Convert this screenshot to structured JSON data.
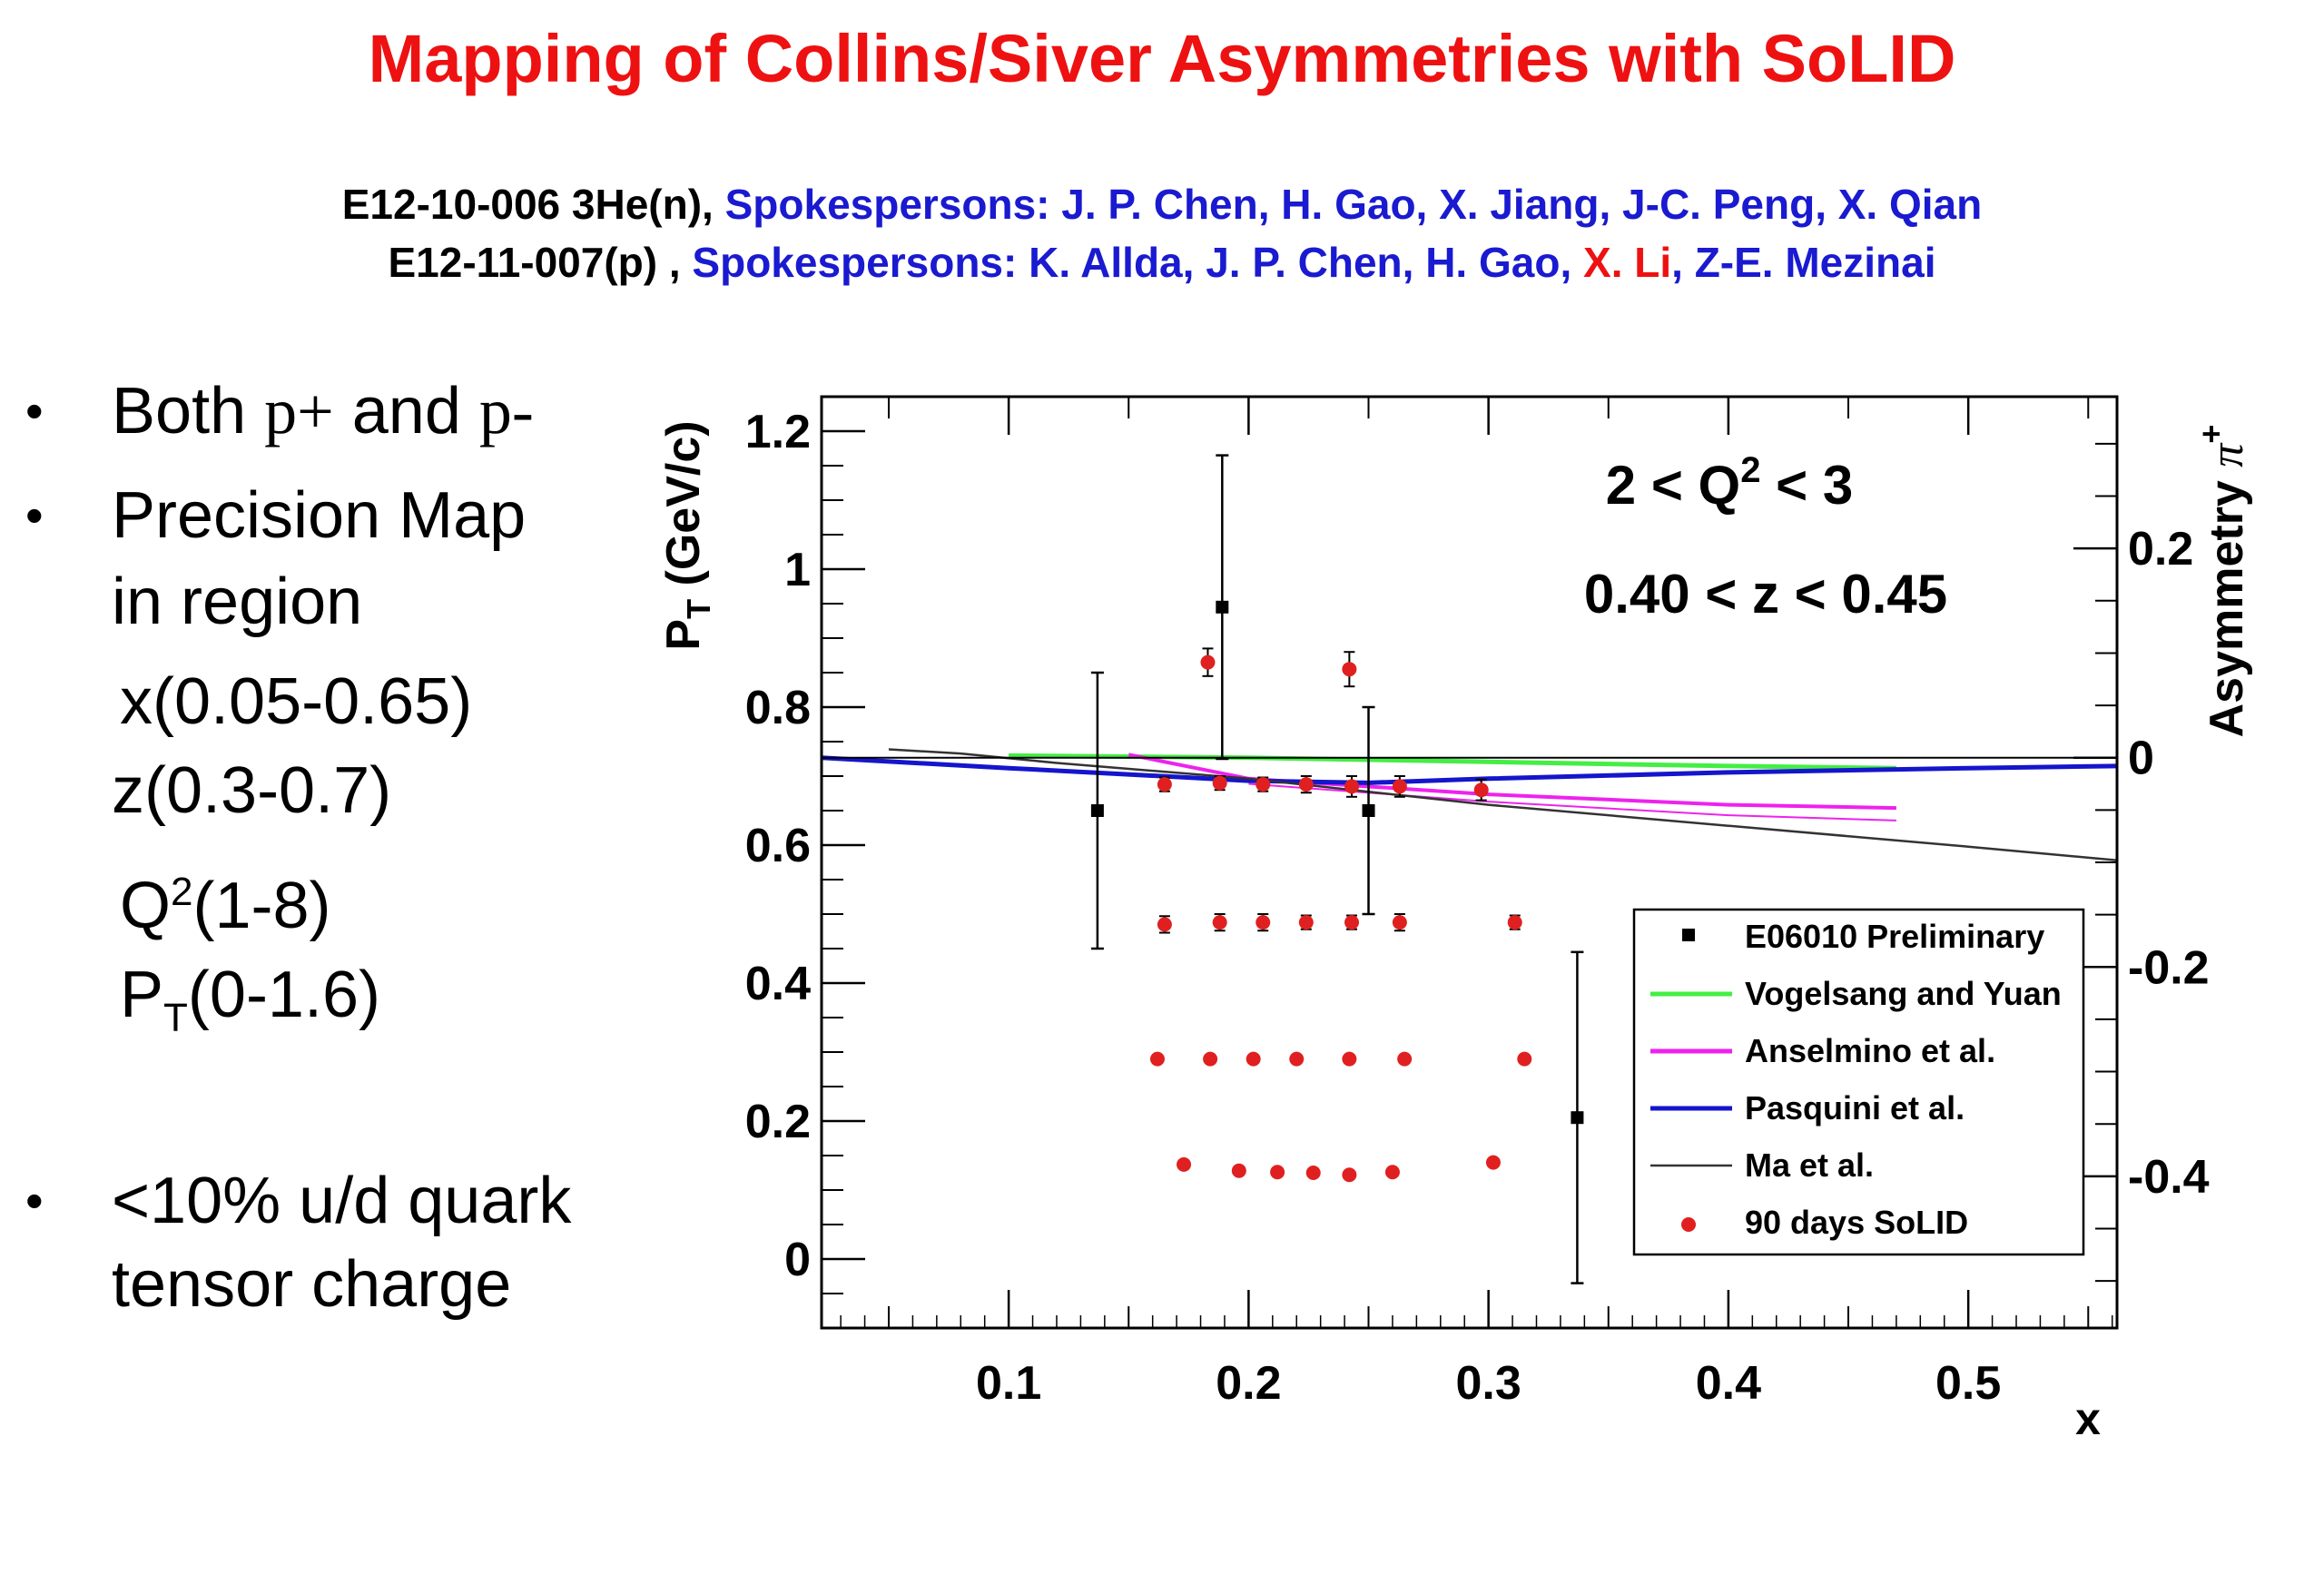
{
  "slide": {
    "title": "Mapping of Collins/Siver Asymmetries with SoLID",
    "line1": {
      "experiment": "E12-10-006 3He(n), ",
      "spokespersons": "Spokespersons: J. P. Chen, H. Gao, X. Jiang, J-C. Peng, X. Qian"
    },
    "line2": {
      "experiment": "E12-11-007(p) , ",
      "spokespersons_a": "Spokespersons: K. Allda, J. P. Chen, H. Gao, ",
      "highlight": "X. Li",
      "spokespersons_b": ", Z-E. Mezinai"
    }
  },
  "bullets": {
    "b1_text": "Both ",
    "b1_p1": "p+",
    "b1_and": " and ",
    "b1_p2": "p-",
    "b2_line1": "Precision Map",
    "b2_line2": "in region",
    "x_range": "x(0.05-0.65)",
    "z_range": "z(0.3-0.7)",
    "q_prefix": "Q",
    "q_sup": "2",
    "q_range": "(1-8)",
    "pt_prefix": "P",
    "pt_sub": "T",
    "pt_range": "(0-1.6)",
    "b3_line1": "<10% u/d quark",
    "b3_line2": "tensor charge"
  },
  "colors": {
    "title": "#ee1111",
    "spokes": "#1a1ad0",
    "vogelsang": "#44ee44",
    "anselmino": "#ee22ee",
    "pasquini": "#1515cc",
    "ma": "#333333",
    "solid": "#e02020"
  },
  "chart_data": {
    "type": "scatter",
    "annotation_q": "2 < Q",
    "annotation_q_sup": "2",
    "annotation_q_end": " < 3",
    "annotation_z": "0.40 < z < 0.45",
    "xlabel": "x",
    "ylabel_left_main": "P",
    "ylabel_left_sub": "T",
    "ylabel_left_unit": " (GeV/c)",
    "ylabel_right_main": "Asymmetry ",
    "ylabel_right_pi": "π",
    "ylabel_right_sup": "+",
    "xlim": [
      0.022,
      0.562
    ],
    "ylim_left": [
      -0.1,
      1.25
    ],
    "ylim_right": [
      -0.545,
      0.345
    ],
    "x_ticks": [
      0.1,
      0.2,
      0.3,
      0.4,
      0.5
    ],
    "x_ticklabels": [
      "0.1",
      "0.2",
      "0.3",
      "0.4",
      "0.5"
    ],
    "y_left_ticks": [
      0,
      0.2,
      0.4,
      0.6,
      0.8,
      1.0,
      1.2
    ],
    "y_left_ticklabels": [
      "0",
      "0.2",
      "0.4",
      "0.6",
      "0.8",
      "1",
      "1.2"
    ],
    "y_right_ticks": [
      0.2,
      0,
      -0.2,
      -0.4
    ],
    "y_right_ticklabels": [
      "0.2",
      "0",
      "-0.2",
      "-0.4"
    ],
    "legend": {
      "position": "lower-right",
      "entries": [
        {
          "label": "E06010 Preliminary",
          "kind": "square"
        },
        {
          "label": "Vogelsang and Yuan",
          "kind": "line",
          "color": "#44ee44"
        },
        {
          "label": "Anselmino et al.",
          "kind": "line",
          "color": "#ee22ee"
        },
        {
          "label": "Pasquini et al.",
          "kind": "line",
          "color": "#1515cc"
        },
        {
          "label": "Ma et al.",
          "kind": "thinline",
          "color": "#333333"
        },
        {
          "label": "90 days SoLID",
          "kind": "dot",
          "color": "#e02020"
        }
      ]
    },
    "e06010": [
      {
        "x": 0.137,
        "y": 0.65,
        "err": 0.2
      },
      {
        "x": 0.189,
        "y": 0.945,
        "err": 0.22
      },
      {
        "x": 0.25,
        "y": 0.65,
        "err": 0.15
      },
      {
        "x": 0.337,
        "y": 0.205,
        "err": 0.24
      }
    ],
    "solid_points": [
      {
        "x": 0.183,
        "y": 0.865,
        "err": 0.02
      },
      {
        "x": 0.242,
        "y": 0.855,
        "err": 0.025
      },
      {
        "x": 0.165,
        "y": 0.688,
        "err": 0.01
      },
      {
        "x": 0.188,
        "y": 0.69,
        "err": 0.01
      },
      {
        "x": 0.206,
        "y": 0.688,
        "err": 0.01
      },
      {
        "x": 0.224,
        "y": 0.688,
        "err": 0.012
      },
      {
        "x": 0.243,
        "y": 0.685,
        "err": 0.015
      },
      {
        "x": 0.263,
        "y": 0.685,
        "err": 0.015
      },
      {
        "x": 0.297,
        "y": 0.68,
        "err": 0.015
      },
      {
        "x": 0.165,
        "y": 0.485,
        "err": 0.012
      },
      {
        "x": 0.188,
        "y": 0.488,
        "err": 0.012
      },
      {
        "x": 0.206,
        "y": 0.488,
        "err": 0.012
      },
      {
        "x": 0.224,
        "y": 0.488,
        "err": 0.01
      },
      {
        "x": 0.243,
        "y": 0.488,
        "err": 0.01
      },
      {
        "x": 0.263,
        "y": 0.488,
        "err": 0.012
      },
      {
        "x": 0.311,
        "y": 0.488,
        "err": 0.01
      },
      {
        "x": 0.162,
        "y": 0.29,
        "err": 0
      },
      {
        "x": 0.184,
        "y": 0.29,
        "err": 0
      },
      {
        "x": 0.202,
        "y": 0.29,
        "err": 0
      },
      {
        "x": 0.22,
        "y": 0.29,
        "err": 0
      },
      {
        "x": 0.242,
        "y": 0.29,
        "err": 0
      },
      {
        "x": 0.265,
        "y": 0.29,
        "err": 0
      },
      {
        "x": 0.315,
        "y": 0.29,
        "err": 0
      },
      {
        "x": 0.173,
        "y": 0.137,
        "err": 0
      },
      {
        "x": 0.196,
        "y": 0.128,
        "err": 0
      },
      {
        "x": 0.212,
        "y": 0.126,
        "err": 0
      },
      {
        "x": 0.227,
        "y": 0.125,
        "err": 0
      },
      {
        "x": 0.242,
        "y": 0.122,
        "err": 0
      },
      {
        "x": 0.26,
        "y": 0.126,
        "err": 0
      },
      {
        "x": 0.302,
        "y": 0.14,
        "err": 0
      }
    ],
    "curves": [
      {
        "key": "vogelsang",
        "color": "#44ee44",
        "width": 5,
        "points": [
          [
            0.1,
            0.002
          ],
          [
            0.2,
            0.0
          ],
          [
            0.3,
            -0.004
          ],
          [
            0.4,
            -0.008
          ],
          [
            0.47,
            -0.01
          ]
        ]
      },
      {
        "key": "anselmino",
        "color": "#ee22ee",
        "width": 4,
        "points": [
          [
            0.15,
            0.003
          ],
          [
            0.2,
            -0.02
          ],
          [
            0.3,
            -0.035
          ],
          [
            0.4,
            -0.045
          ],
          [
            0.47,
            -0.048
          ]
        ]
      },
      {
        "key": "anselmino_band",
        "color": "#ee22ee",
        "width": 2,
        "points": [
          [
            0.2,
            -0.025
          ],
          [
            0.3,
            -0.042
          ],
          [
            0.4,
            -0.055
          ],
          [
            0.47,
            -0.06
          ]
        ]
      },
      {
        "key": "pasquini",
        "color": "#1515cc",
        "width": 5,
        "points": [
          [
            0.022,
            0.0
          ],
          [
            0.1,
            -0.01
          ],
          [
            0.2,
            -0.022
          ],
          [
            0.25,
            -0.024
          ],
          [
            0.3,
            -0.02
          ],
          [
            0.4,
            -0.014
          ],
          [
            0.5,
            -0.01
          ],
          [
            0.562,
            -0.008
          ]
        ]
      },
      {
        "key": "ma",
        "color": "#333333",
        "width": 2.5,
        "points": [
          [
            0.05,
            0.008
          ],
          [
            0.08,
            0.004
          ],
          [
            0.12,
            -0.005
          ],
          [
            0.2,
            -0.02
          ],
          [
            0.3,
            -0.045
          ],
          [
            0.4,
            -0.065
          ],
          [
            0.5,
            -0.085
          ],
          [
            0.562,
            -0.098
          ]
        ]
      }
    ]
  }
}
